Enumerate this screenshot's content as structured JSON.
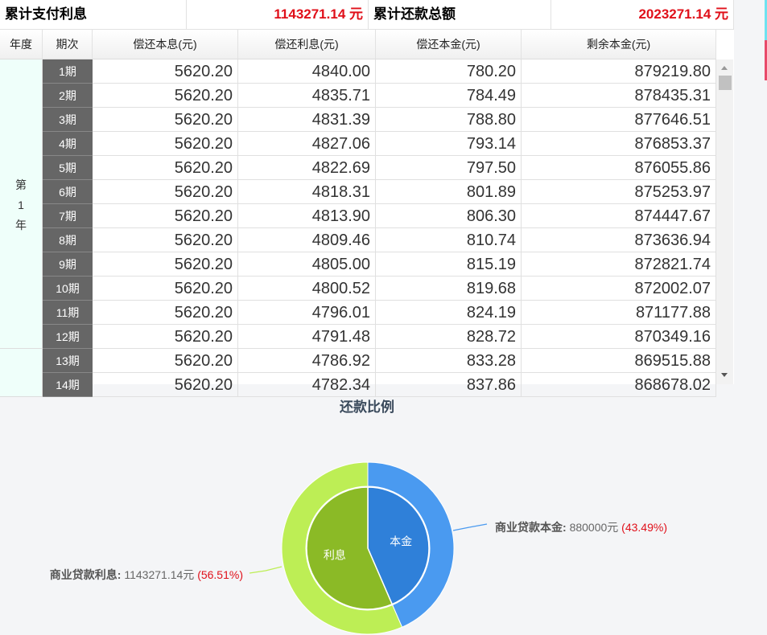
{
  "summary": {
    "interest_label": "累计支付利息",
    "interest_value": "1143271.14 元",
    "total_label": "累计还款总额",
    "total_value": "2023271.14 元"
  },
  "headers": [
    "年度",
    "期次",
    "偿还本息(元)",
    "偿还利息(元)",
    "偿还本金(元)",
    "剩余本金(元)"
  ],
  "year_groups": [
    {
      "label": "第\n1\n年"
    },
    {
      "label": ""
    }
  ],
  "rows": [
    [
      "1期",
      "5620.20",
      "4840.00",
      "780.20",
      "879219.80"
    ],
    [
      "2期",
      "5620.20",
      "4835.71",
      "784.49",
      "878435.31"
    ],
    [
      "3期",
      "5620.20",
      "4831.39",
      "788.80",
      "877646.51"
    ],
    [
      "4期",
      "5620.20",
      "4827.06",
      "793.14",
      "876853.37"
    ],
    [
      "5期",
      "5620.20",
      "4822.69",
      "797.50",
      "876055.86"
    ],
    [
      "6期",
      "5620.20",
      "4818.31",
      "801.89",
      "875253.97"
    ],
    [
      "7期",
      "5620.20",
      "4813.90",
      "806.30",
      "874447.67"
    ],
    [
      "8期",
      "5620.20",
      "4809.46",
      "810.74",
      "873636.94"
    ],
    [
      "9期",
      "5620.20",
      "4805.00",
      "815.19",
      "872821.74"
    ],
    [
      "10期",
      "5620.20",
      "4800.52",
      "819.68",
      "872002.07"
    ],
    [
      "11期",
      "5620.20",
      "4796.01",
      "824.19",
      "871177.88"
    ],
    [
      "12期",
      "5620.20",
      "4791.48",
      "828.72",
      "870349.16"
    ],
    [
      "13期",
      "5620.20",
      "4786.92",
      "833.28",
      "869515.88"
    ],
    [
      "14期",
      "5620.20",
      "4782.34",
      "837.86",
      "868678.02"
    ]
  ],
  "chart_data": {
    "type": "pie",
    "title": "还款比例",
    "slices": [
      {
        "name": "商业贷款本金",
        "inner_label": "本金",
        "value": 880000,
        "value_text": "880000元",
        "percent": "(43.49%)",
        "outer_color": "#4a9af0",
        "inner_color": "#2f80d9"
      },
      {
        "name": "商业贷款利息",
        "inner_label": "利息",
        "value": 1143271.14,
        "value_text": "1143271.14元",
        "percent": "(56.51%)",
        "outer_color": "#bdee55",
        "inner_color": "#8bba26"
      }
    ]
  }
}
